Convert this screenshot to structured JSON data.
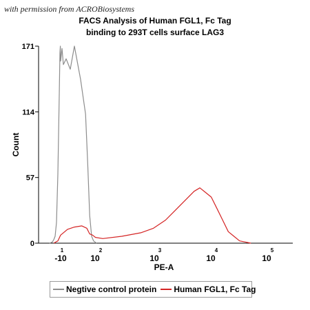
{
  "watermark": "with permission from ACROBiosystems",
  "chart_data": {
    "type": "line",
    "title": [
      "FACS Analysis of Human FGL1, Fc Tag",
      "binding to 293T cells surface LAG3"
    ],
    "xlabel": "PE-A",
    "ylabel": "Count",
    "x_scale": "biexponential",
    "x_tick_labels": [
      {
        "base": "-10",
        "exp": "1"
      },
      {
        "base": "10",
        "exp": "2"
      },
      {
        "base": "10",
        "exp": "3"
      },
      {
        "base": "10",
        "exp": "4"
      },
      {
        "base": "10",
        "exp": "5"
      }
    ],
    "y_ticks": [
      0,
      57,
      114,
      171
    ],
    "ylim": [
      0,
      171
    ],
    "grid": false,
    "legend_position": "bottom",
    "series": [
      {
        "name": "Negtive control protein",
        "color": "#8c8c8c",
        "x": [
          "-10^1.8",
          "-10^1.6",
          "-10^1.5",
          "-10^1.4",
          "-10^1.3",
          "-10^1.2",
          "-10^1.1",
          "-10^1.05",
          "-10^1.02",
          "-10^1.0",
          "-10^0.9",
          "-10^0.8",
          "-10^0.6",
          "-10^0.3",
          "0",
          "10^0.5",
          "10^0.9",
          "10^1.1",
          "10^1.3",
          "10^1.5",
          "10^1.7",
          "10^1.85",
          "10^2"
        ],
        "values": [
          0,
          1,
          3,
          6,
          18,
          60,
          128,
          165,
          171,
          158,
          169,
          155,
          160,
          151,
          171,
          142,
          112,
          68,
          24,
          6,
          2,
          1,
          0
        ]
      },
      {
        "name": "Human FGL1, Fc Tag",
        "color": "#d42323",
        "x": [
          "-10^1.5",
          "-10^1.2",
          "-10^1.0",
          "-10^0.5",
          "0",
          "10^0.6",
          "10^1.0",
          "10^1.3",
          "10^1.6",
          "10^1.9",
          "10^2.1",
          "10^2.4",
          "10^2.7",
          "10^2.9",
          "10^3.1",
          "10^3.3",
          "10^3.5",
          "10^3.6",
          "10^3.7",
          "10^3.8",
          "10^3.9",
          "10^4.0",
          "10^4.1",
          "10^4.2",
          "10^4.3",
          "10^4.4",
          "10^4.5",
          "10^4.6"
        ],
        "values": [
          0,
          2,
          7,
          12,
          14,
          15,
          13,
          8,
          7,
          5,
          4,
          6,
          9,
          13,
          20,
          30,
          40,
          45,
          48,
          44,
          40,
          30,
          20,
          10,
          6,
          2,
          1,
          0
        ]
      }
    ]
  }
}
